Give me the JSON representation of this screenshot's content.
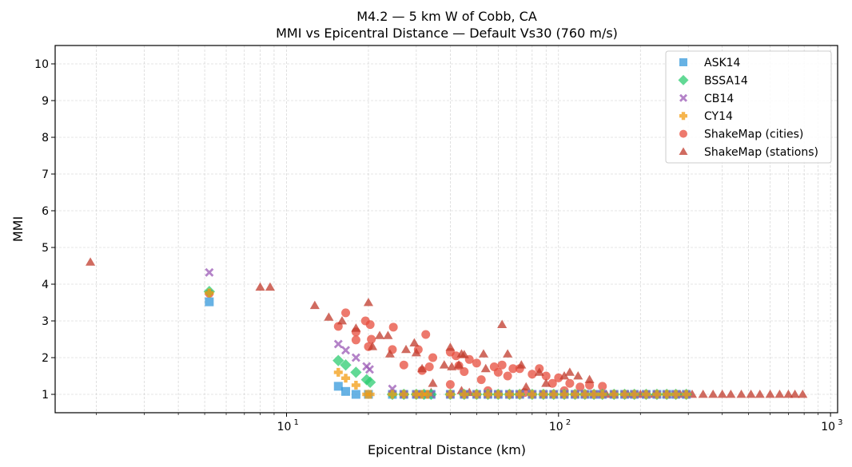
{
  "chart_data": {
    "type": "scatter",
    "title": "M4.2 — 5 km W of Cobb, CA",
    "subtitle": "MMI vs Epicentral Distance — Default Vs30 (760 m/s)",
    "xlabel": "Epicentral Distance (km)",
    "ylabel": "MMI",
    "xscale": "log",
    "xlim": [
      1.41,
      1062
    ],
    "ylim": [
      0.5,
      10.5
    ],
    "x_ticks": [
      {
        "value": 10,
        "label": "10"
      },
      {
        "value": 100,
        "label": "10"
      },
      {
        "value": 1000,
        "label": "10"
      }
    ],
    "x_tick_exponents": [
      "1",
      "2",
      "3"
    ],
    "y_ticks": [
      "1",
      "2",
      "3",
      "4",
      "5",
      "6",
      "7",
      "8",
      "9",
      "10"
    ],
    "grid": true,
    "legend_position": "top-right",
    "series": [
      {
        "name": "ASK14",
        "marker": "square",
        "color": "#3498db",
        "points": [
          [
            5.2,
            3.52
          ],
          [
            15.5,
            1.22
          ],
          [
            16.5,
            1.08
          ],
          [
            18,
            1
          ],
          [
            20,
            1
          ],
          [
            24.5,
            1
          ],
          [
            27,
            1
          ],
          [
            30,
            1
          ],
          [
            32,
            1
          ],
          [
            34,
            1
          ],
          [
            40,
            1
          ],
          [
            45,
            1
          ],
          [
            50,
            1
          ],
          [
            55,
            1
          ],
          [
            60,
            1
          ],
          [
            66,
            1
          ],
          [
            72,
            1
          ],
          [
            80,
            1
          ],
          [
            88,
            1
          ],
          [
            96,
            1
          ],
          [
            105,
            1
          ],
          [
            115,
            1
          ],
          [
            125,
            1
          ],
          [
            135,
            1
          ],
          [
            145,
            1
          ],
          [
            160,
            1
          ],
          [
            175,
            1
          ],
          [
            190,
            1
          ],
          [
            210,
            1
          ],
          [
            230,
            1
          ],
          [
            250,
            1
          ],
          [
            270,
            1
          ],
          [
            295,
            1
          ]
        ]
      },
      {
        "name": "BSSA14",
        "marker": "diamond",
        "color": "#2ecc71",
        "points": [
          [
            5.2,
            3.8
          ],
          [
            15.5,
            1.92
          ],
          [
            16.5,
            1.8
          ],
          [
            18,
            1.6
          ],
          [
            19.7,
            1.4
          ],
          [
            20.3,
            1.33
          ],
          [
            24.5,
            1
          ],
          [
            27,
            1
          ],
          [
            30,
            1
          ],
          [
            32,
            1
          ],
          [
            34,
            1
          ],
          [
            40,
            1
          ],
          [
            45,
            1
          ],
          [
            50,
            1
          ],
          [
            55,
            1
          ],
          [
            60,
            1
          ],
          [
            66,
            1
          ],
          [
            72,
            1
          ],
          [
            80,
            1
          ],
          [
            88,
            1
          ],
          [
            96,
            1
          ],
          [
            105,
            1
          ],
          [
            115,
            1
          ],
          [
            125,
            1
          ],
          [
            135,
            1
          ],
          [
            145,
            1
          ],
          [
            160,
            1
          ],
          [
            175,
            1
          ],
          [
            190,
            1
          ],
          [
            210,
            1
          ],
          [
            230,
            1
          ],
          [
            250,
            1
          ],
          [
            270,
            1
          ],
          [
            295,
            1
          ]
        ]
      },
      {
        "name": "CB14",
        "marker": "x",
        "color": "#9b59b6",
        "points": [
          [
            5.2,
            4.32
          ],
          [
            15.5,
            2.37
          ],
          [
            16.5,
            2.2
          ],
          [
            18,
            2
          ],
          [
            19.7,
            1.76
          ],
          [
            20.2,
            1.68
          ],
          [
            24.5,
            1.15
          ],
          [
            27,
            1
          ],
          [
            30,
            1
          ],
          [
            32,
            1
          ],
          [
            34,
            1
          ],
          [
            40,
            1
          ],
          [
            45,
            1
          ],
          [
            50,
            1
          ],
          [
            55,
            1
          ],
          [
            60,
            1
          ],
          [
            66,
            1
          ],
          [
            72,
            1
          ],
          [
            80,
            1
          ],
          [
            88,
            1
          ],
          [
            96,
            1
          ],
          [
            105,
            1
          ],
          [
            115,
            1
          ],
          [
            125,
            1
          ],
          [
            135,
            1
          ],
          [
            145,
            1
          ],
          [
            160,
            1
          ],
          [
            175,
            1
          ],
          [
            190,
            1
          ],
          [
            210,
            1
          ],
          [
            230,
            1
          ],
          [
            250,
            1
          ],
          [
            270,
            1
          ],
          [
            295,
            1
          ]
        ]
      },
      {
        "name": "CY14",
        "marker": "plus",
        "color": "#f39c12",
        "points": [
          [
            5.2,
            3.76
          ],
          [
            15.5,
            1.6
          ],
          [
            16.5,
            1.44
          ],
          [
            18,
            1.25
          ],
          [
            19.7,
            1
          ],
          [
            20.3,
            1
          ],
          [
            24.5,
            1
          ],
          [
            27,
            1
          ],
          [
            30,
            1
          ],
          [
            31.5,
            1
          ],
          [
            33,
            1
          ],
          [
            40,
            1
          ],
          [
            45,
            1
          ],
          [
            50,
            1
          ],
          [
            55,
            1
          ],
          [
            60,
            1
          ],
          [
            66,
            1
          ],
          [
            72,
            1
          ],
          [
            80,
            1
          ],
          [
            88,
            1
          ],
          [
            96,
            1
          ],
          [
            105,
            1
          ],
          [
            115,
            1
          ],
          [
            125,
            1
          ],
          [
            135,
            1
          ],
          [
            145,
            1
          ],
          [
            160,
            1
          ],
          [
            175,
            1
          ],
          [
            190,
            1
          ],
          [
            210,
            1
          ],
          [
            230,
            1
          ],
          [
            250,
            1
          ],
          [
            270,
            1
          ],
          [
            295,
            1
          ]
        ]
      },
      {
        "name": "ShakeMap (cities)",
        "marker": "circle",
        "color": "#e74c3c",
        "points": [
          [
            5.2,
            3.75
          ],
          [
            15.5,
            2.85
          ],
          [
            16.5,
            3.22
          ],
          [
            18,
            2.7
          ],
          [
            18,
            2.48
          ],
          [
            19.5,
            3
          ],
          [
            20,
            2.3
          ],
          [
            20.3,
            2.9
          ],
          [
            20.5,
            2.5
          ],
          [
            24.5,
            2.22
          ],
          [
            24.7,
            2.83
          ],
          [
            27,
            1.8
          ],
          [
            30.5,
            2.22
          ],
          [
            31.5,
            1.65
          ],
          [
            32.5,
            2.63
          ],
          [
            33.5,
            1.75
          ],
          [
            34.5,
            2
          ],
          [
            40,
            2.15
          ],
          [
            40,
            1.27
          ],
          [
            42,
            2.05
          ],
          [
            43,
            1.78
          ],
          [
            45,
            1.62
          ],
          [
            47,
            1.95
          ],
          [
            50,
            1.85
          ],
          [
            52,
            1.4
          ],
          [
            58,
            1.75
          ],
          [
            60,
            1.6
          ],
          [
            62,
            1.8
          ],
          [
            65,
            1.5
          ],
          [
            68,
            1.7
          ],
          [
            72,
            1.7
          ],
          [
            80,
            1.55
          ],
          [
            85,
            1.7
          ],
          [
            90,
            1.5
          ],
          [
            95,
            1.3
          ],
          [
            100,
            1.45
          ],
          [
            110,
            1.3
          ],
          [
            120,
            1.2
          ],
          [
            130,
            1.25
          ],
          [
            145,
            1.22
          ],
          [
            55,
            1.1
          ],
          [
            75,
            1.05
          ],
          [
            105,
            1.1
          ]
        ]
      },
      {
        "name": "ShakeMap (stations)",
        "marker": "triangle",
        "color": "#c0392b",
        "points": [
          [
            1.9,
            4.6
          ],
          [
            8,
            3.92
          ],
          [
            8.7,
            3.92
          ],
          [
            12.7,
            3.42
          ],
          [
            14.3,
            3.1
          ],
          [
            16,
            3
          ],
          [
            18,
            2.8
          ],
          [
            20,
            3.5
          ],
          [
            20.7,
            2.3
          ],
          [
            22,
            2.6
          ],
          [
            23.6,
            2.6
          ],
          [
            24,
            2.1
          ],
          [
            27.5,
            2.22
          ],
          [
            29.5,
            2.4
          ],
          [
            30,
            2.13
          ],
          [
            31.5,
            1.7
          ],
          [
            34.5,
            1.3
          ],
          [
            34,
            1.05
          ],
          [
            38,
            1.8
          ],
          [
            40,
            2.28
          ],
          [
            40.5,
            1.75
          ],
          [
            43,
            1.8
          ],
          [
            44,
            2.1
          ],
          [
            45,
            2.08
          ],
          [
            44,
            1.1
          ],
          [
            47,
            1.05
          ],
          [
            53,
            2.1
          ],
          [
            54,
            1.7
          ],
          [
            62,
            2.9
          ],
          [
            65,
            2.1
          ],
          [
            73,
            1.8
          ],
          [
            76,
            1.2
          ],
          [
            85,
            1.6
          ],
          [
            90,
            1.3
          ],
          [
            105,
            1.5
          ],
          [
            110,
            1.6
          ],
          [
            118,
            1.5
          ],
          [
            130,
            1.4
          ],
          [
            150,
            1
          ],
          [
            160,
            1
          ],
          [
            180,
            1
          ],
          [
            200,
            1
          ],
          [
            225,
            1
          ],
          [
            250,
            1
          ],
          [
            280,
            1
          ],
          [
            310,
            1
          ],
          [
            340,
            1
          ],
          [
            370,
            1
          ],
          [
            400,
            1
          ],
          [
            430,
            1
          ],
          [
            470,
            1
          ],
          [
            510,
            1
          ],
          [
            550,
            1
          ],
          [
            600,
            1
          ],
          [
            650,
            1
          ],
          [
            700,
            1
          ],
          [
            740,
            1
          ],
          [
            790,
            1
          ]
        ]
      }
    ]
  }
}
